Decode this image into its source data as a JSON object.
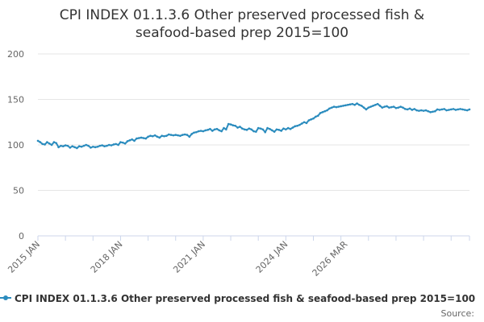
{
  "chart_data": {
    "type": "line",
    "title_line1": "CPI INDEX 01.1.3.6 Other preserved processed fish &",
    "title_line2": "seafood-based prep 2015=100",
    "ylim": [
      0,
      200
    ],
    "y_ticks": [
      0,
      50,
      100,
      150,
      200
    ],
    "x_tick_labels": [
      "2015 JAN",
      "2018 JAN",
      "2021 JAN",
      "2024 JAN",
      "2026 MAR"
    ],
    "x_tick_index": [
      0,
      36,
      72,
      108,
      134
    ],
    "grid": true,
    "legend_position": "bottom",
    "series": [
      {
        "name": "CPI INDEX 01.1.3.6 Other preserved processed fish & seafood-based prep 2015=100",
        "color": "#2b8cbe",
        "start": "2015-01",
        "values": [
          104.5,
          103.0,
          101.0,
          100.5,
          103.0,
          101.5,
          100.0,
          103.0,
          102.0,
          97.5,
          99.0,
          98.5,
          99.5,
          99.0,
          97.0,
          98.5,
          97.5,
          96.5,
          98.5,
          98.0,
          99.0,
          100.0,
          99.0,
          97.0,
          98.0,
          97.5,
          98.0,
          99.0,
          99.5,
          98.5,
          99.0,
          100.0,
          99.5,
          100.5,
          101.0,
          100.0,
          103.0,
          102.5,
          101.5,
          104.0,
          105.0,
          106.0,
          104.5,
          107.0,
          107.5,
          108.0,
          107.5,
          107.0,
          109.0,
          110.0,
          109.5,
          110.5,
          109.0,
          108.0,
          110.0,
          109.5,
          110.0,
          111.5,
          111.0,
          110.5,
          111.0,
          110.5,
          110.0,
          111.0,
          111.5,
          111.0,
          109.0,
          112.0,
          113.5,
          114.0,
          115.0,
          115.5,
          115.0,
          116.0,
          116.5,
          117.5,
          115.5,
          117.0,
          117.5,
          116.0,
          115.0,
          118.5,
          117.0,
          123.0,
          122.5,
          121.5,
          121.0,
          119.0,
          120.0,
          118.0,
          117.0,
          116.5,
          118.0,
          117.0,
          115.0,
          114.5,
          118.5,
          118.0,
          117.0,
          114.0,
          118.5,
          117.5,
          116.0,
          114.5,
          117.0,
          116.5,
          115.5,
          118.0,
          117.0,
          118.5,
          117.5,
          119.0,
          120.5,
          121.0,
          122.0,
          123.5,
          125.0,
          124.0,
          127.0,
          128.0,
          129.0,
          131.0,
          132.0,
          135.0,
          136.0,
          137.0,
          138.0,
          140.0,
          141.0,
          142.0,
          141.5,
          142.0,
          142.5,
          143.0,
          143.5,
          144.0,
          144.5,
          145.0,
          144.0,
          145.5,
          144.0,
          143.0,
          141.0,
          139.0,
          141.0,
          142.0,
          143.0,
          144.0,
          145.0,
          143.0,
          141.0,
          142.0,
          142.5,
          141.0,
          141.5,
          142.0,
          140.5,
          141.0,
          142.0,
          141.0,
          139.5,
          139.0,
          140.0,
          138.5,
          139.5,
          138.0,
          137.5,
          138.0,
          137.5,
          138.0,
          137.0,
          136.0,
          136.5,
          137.0,
          139.0,
          138.5,
          139.0,
          139.5,
          138.0,
          138.5,
          139.0,
          139.5,
          138.5,
          139.0,
          139.5,
          139.0,
          138.5,
          138.0,
          139.0
        ]
      }
    ],
    "source_label": "Source:"
  }
}
